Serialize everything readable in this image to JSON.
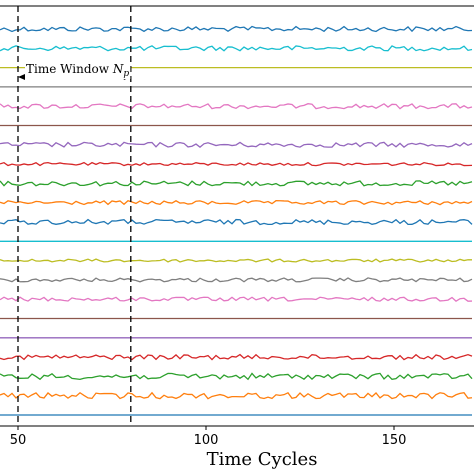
{
  "chart_data": {
    "type": "line",
    "xlabel": "Time Cycles",
    "x_ticks": [
      50,
      100,
      150
    ],
    "xlim": [
      50,
      170
    ],
    "grid": false,
    "legend": "none",
    "annotation": {
      "label_prefix": "Time Window ",
      "label_symbol": "N",
      "label_subscript": "p",
      "x_start": 50,
      "x_end": 80
    },
    "series": [
      {
        "color": "#1f77b4",
        "amplitude": 2.5
      },
      {
        "color": "#17becf",
        "amplitude": 2.5
      },
      {
        "color": "#bcbd22",
        "amplitude": 0
      },
      {
        "color": "#7f7f7f",
        "amplitude": 0
      },
      {
        "color": "#e377c2",
        "amplitude": 2.5
      },
      {
        "color": "#8c564b",
        "amplitude": 0
      },
      {
        "color": "#9467bd",
        "amplitude": 2.5
      },
      {
        "color": "#d62728",
        "amplitude": 1.5
      },
      {
        "color": "#2ca02c",
        "amplitude": 2.5
      },
      {
        "color": "#ff7f0e",
        "amplitude": 2
      },
      {
        "color": "#1f77b4",
        "amplitude": 2.5
      },
      {
        "color": "#17becf",
        "amplitude": 0
      },
      {
        "color": "#bcbd22",
        "amplitude": 1.5
      },
      {
        "color": "#7f7f7f",
        "amplitude": 2
      },
      {
        "color": "#e377c2",
        "amplitude": 2
      },
      {
        "color": "#8c564b",
        "amplitude": 0
      },
      {
        "color": "#9467bd",
        "amplitude": 0
      },
      {
        "color": "#d62728",
        "amplitude": 2.5
      },
      {
        "color": "#2ca02c",
        "amplitude": 3
      },
      {
        "color": "#ff7f0e",
        "amplitude": 3
      },
      {
        "color": "#1f77b4",
        "amplitude": 0
      }
    ]
  }
}
